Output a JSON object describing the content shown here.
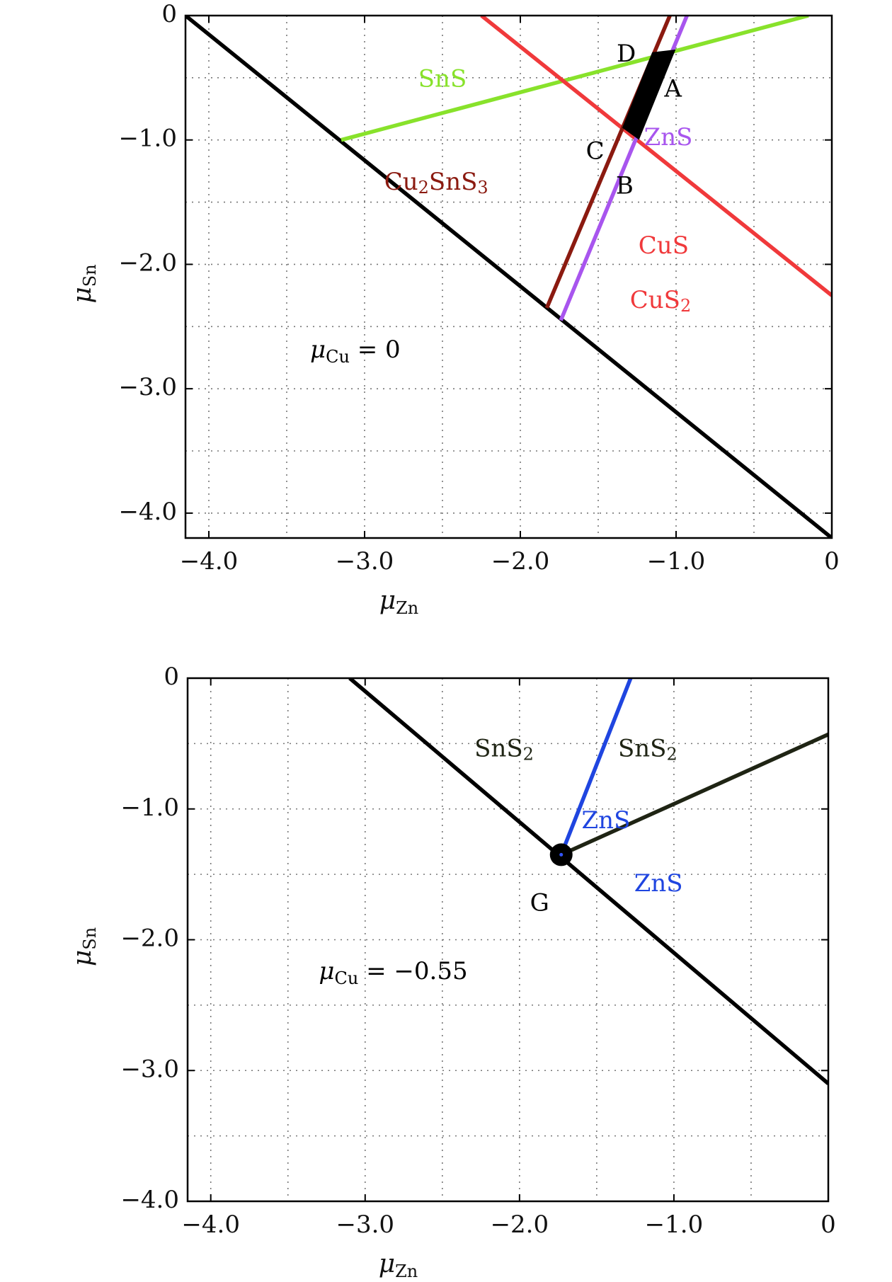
{
  "chart_data": [
    {
      "type": "line",
      "xlabel": "μZn",
      "ylabel": "μSn",
      "xlim": [
        -4.15,
        0
      ],
      "ylim": [
        -4.2,
        0
      ],
      "xticks": [
        -4.0,
        -3.0,
        -2.0,
        -1.0,
        0
      ],
      "xtick_labels": [
        "−4.0",
        "−3.0",
        "−2.0",
        "−1.0",
        "0"
      ],
      "yticks": [
        0,
        -1.0,
        -2.0,
        -3.0,
        -4.0
      ],
      "ytick_labels": [
        "0",
        "−1.0",
        "−2.0",
        "−3.0",
        "−4.0"
      ],
      "grid": true,
      "annotation": {
        "text": "μCu = 0",
        "base": "μ",
        "sub": "Cu",
        "rest": " = 0",
        "x": -3.35,
        "y": -2.75
      },
      "series": [
        {
          "name": "",
          "color": "#000000",
          "x": [
            -4.15,
            0
          ],
          "y": [
            0,
            -4.2
          ]
        },
        {
          "name": "SnS",
          "color": "#88e22b",
          "x": [
            -3.15,
            -0.15
          ],
          "y": [
            -1.0,
            0
          ]
        },
        {
          "name": "CuS",
          "color": "#f0393b",
          "x": [
            -2.25,
            0
          ],
          "y": [
            0,
            -2.25
          ]
        },
        {
          "name": "Cu2SnS3",
          "color": "#8b1a10",
          "x": [
            -1.83,
            -1.04
          ],
          "y": [
            -2.35,
            0
          ]
        },
        {
          "name": "ZnS",
          "color": "#a855ee",
          "x": [
            -1.74,
            -0.93
          ],
          "y": [
            -2.45,
            0
          ]
        }
      ],
      "region": {
        "points": [
          {
            "name": "D",
            "x": -1.15,
            "y": -0.3
          },
          {
            "name": "A",
            "x": -1.01,
            "y": -0.28
          },
          {
            "name": "B",
            "x": -1.24,
            "y": -0.99
          },
          {
            "name": "C",
            "x": -1.34,
            "y": -0.9
          }
        ]
      },
      "labels": [
        {
          "text": "SnS",
          "base": "SnS",
          "sub": "",
          "rest": "",
          "x": -2.5,
          "y": -0.52,
          "color": "#88e22b"
        },
        {
          "text": "Cu2SnS3",
          "base": "Cu",
          "sub": "2",
          "rest": "SnS",
          "sub2": "3",
          "x": -2.54,
          "y": -1.35,
          "color": "#8b1a10"
        },
        {
          "text": "ZnS",
          "base": "ZnS",
          "sub": "",
          "rest": "",
          "x": -1.05,
          "y": -0.99,
          "color": "#a855ee"
        },
        {
          "text": "CuS",
          "base": "CuS",
          "sub": "",
          "rest": "",
          "x": -1.08,
          "y": -1.86,
          "color": "#f0393b"
        },
        {
          "text": "CuS2",
          "base": "CuS",
          "sub": "2",
          "rest": "",
          "x": -1.1,
          "y": -2.3,
          "color": "#f0393b"
        },
        {
          "text": "D",
          "base": "D",
          "sub": "",
          "rest": "",
          "x": -1.32,
          "y": -0.32,
          "color": "#000000"
        },
        {
          "text": "A",
          "base": "A",
          "sub": "",
          "rest": "",
          "x": -1.02,
          "y": -0.6,
          "color": "#000000"
        },
        {
          "text": "C",
          "base": "C",
          "sub": "",
          "rest": "",
          "x": -1.52,
          "y": -1.1,
          "color": "#000000"
        },
        {
          "text": "B",
          "base": "B",
          "sub": "",
          "rest": "",
          "x": -1.33,
          "y": -1.38,
          "color": "#000000"
        }
      ]
    },
    {
      "type": "line",
      "xlabel": "μZn",
      "ylabel": "μSn",
      "xlim": [
        -4.15,
        0
      ],
      "ylim": [
        -4.0,
        0
      ],
      "xticks": [
        -4.0,
        -3.0,
        -2.0,
        -1.0,
        0
      ],
      "xtick_labels": [
        "−4.0",
        "−3.0",
        "−2.0",
        "−1.0",
        "0"
      ],
      "yticks": [
        0,
        -1.0,
        -2.0,
        -3.0,
        -4.0
      ],
      "ytick_labels": [
        "0",
        "−1.0",
        "−2.0",
        "−3.0",
        "−4.0"
      ],
      "grid": true,
      "annotation": {
        "text": "μCu = −0.55",
        "base": "μ",
        "sub": "Cu",
        "rest": " = −0.55",
        "x": -3.3,
        "y": -2.3
      },
      "series": [
        {
          "name": "",
          "color": "#000000",
          "x": [
            -3.1,
            0
          ],
          "y": [
            0,
            -3.1
          ]
        },
        {
          "name": "ZnS",
          "color": "#1f45e0",
          "x": [
            -1.73,
            -1.28
          ],
          "y": [
            -1.35,
            0
          ]
        },
        {
          "name": "SnS2",
          "color": "#1f2414",
          "x": [
            -1.73,
            0
          ],
          "y": [
            -1.35,
            -0.43
          ]
        }
      ],
      "point": {
        "name": "G",
        "x": -1.73,
        "y": -1.35
      },
      "labels": [
        {
          "text": "SnS2",
          "base": "SnS",
          "sub": "2",
          "rest": "",
          "x": -2.1,
          "y": -0.55,
          "color": "#1f2414"
        },
        {
          "text": "SnS2",
          "base": "SnS",
          "sub": "2",
          "rest": "",
          "x": -1.17,
          "y": -0.55,
          "color": "#1f2414"
        },
        {
          "text": "ZnS",
          "base": "ZnS",
          "sub": "",
          "rest": "",
          "x": -1.44,
          "y": -1.1,
          "color": "#1f45e0"
        },
        {
          "text": "ZnS",
          "base": "ZnS",
          "sub": "",
          "rest": "",
          "x": -1.1,
          "y": -1.58,
          "color": "#1f45e0"
        },
        {
          "text": "G",
          "base": "G",
          "sub": "",
          "rest": "",
          "x": -1.87,
          "y": -1.73,
          "color": "#000000"
        }
      ]
    }
  ]
}
